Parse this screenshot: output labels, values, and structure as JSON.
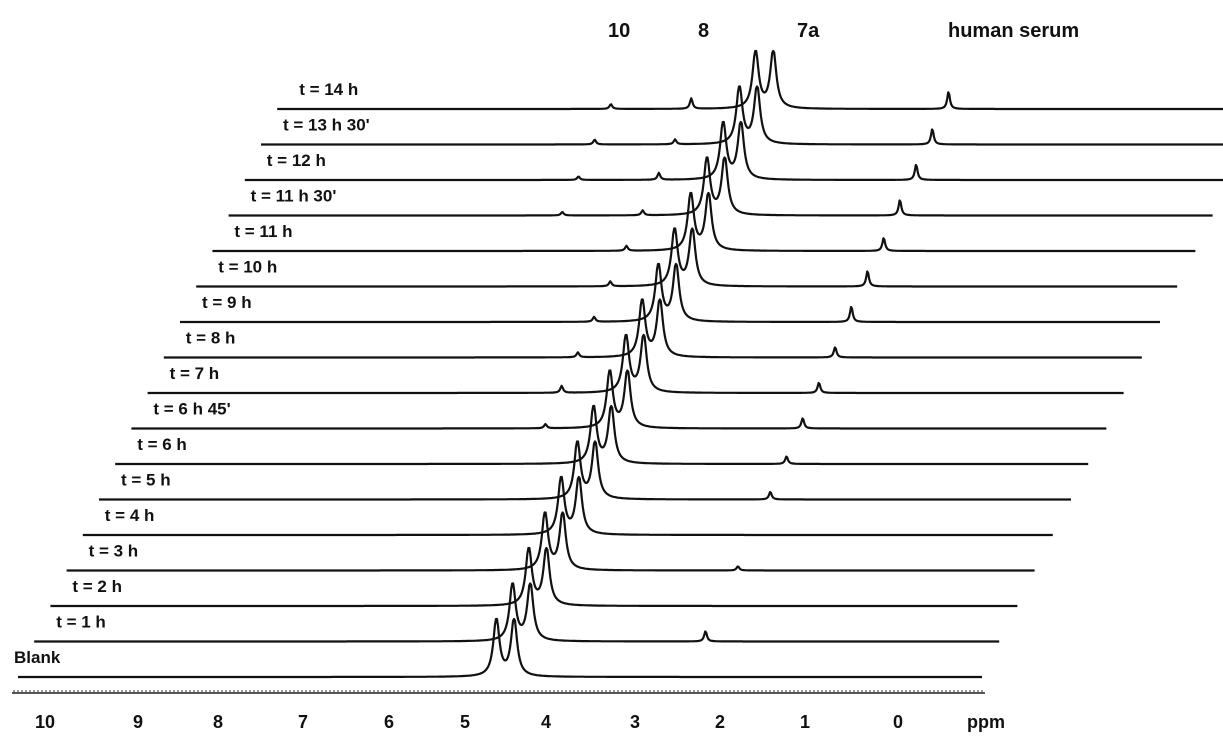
{
  "chart_data": {
    "type": "line",
    "title": "",
    "xlabel": "ppm",
    "ylabel": "",
    "x_reversed": true,
    "xlim": [
      10,
      0
    ],
    "x_ticks": [
      "10",
      "9",
      "8",
      "7",
      "6",
      "5",
      "4",
      "3",
      "2",
      "1",
      "0"
    ],
    "peak_labels": [
      "10",
      "8",
      "7a",
      "human serum"
    ],
    "series": [
      {
        "name": "Blank",
        "peaks": [
          {
            "ppm": 4.3,
            "h": 1.0
          },
          {
            "ppm": 4.08,
            "h": 1.0
          }
        ]
      },
      {
        "name": "t = 1 h",
        "peaks": [
          {
            "ppm": 4.3,
            "h": 1.0
          },
          {
            "ppm": 4.08,
            "h": 1.0
          },
          {
            "ppm": 1.9,
            "h": 0.3
          }
        ]
      },
      {
        "name": "t = 2 h",
        "peaks": [
          {
            "ppm": 4.3,
            "h": 1.0
          },
          {
            "ppm": 4.08,
            "h": 1.0
          }
        ]
      },
      {
        "name": "t = 3 h",
        "peaks": [
          {
            "ppm": 4.3,
            "h": 1.0
          },
          {
            "ppm": 4.08,
            "h": 1.0
          },
          {
            "ppm": 1.9,
            "h": 0.12
          }
        ]
      },
      {
        "name": "t = 4 h",
        "peaks": [
          {
            "ppm": 4.3,
            "h": 1.0
          },
          {
            "ppm": 4.08,
            "h": 1.0
          }
        ]
      },
      {
        "name": "t = 5 h",
        "peaks": [
          {
            "ppm": 4.3,
            "h": 1.0
          },
          {
            "ppm": 4.08,
            "h": 1.0
          },
          {
            "ppm": 1.9,
            "h": 0.22
          }
        ]
      },
      {
        "name": "t = 6 h",
        "peaks": [
          {
            "ppm": 4.3,
            "h": 1.0
          },
          {
            "ppm": 4.08,
            "h": 1.0
          },
          {
            "ppm": 1.9,
            "h": 0.22
          }
        ]
      },
      {
        "name": "t = 6 h 45'",
        "peaks": [
          {
            "ppm": 4.3,
            "h": 1.0
          },
          {
            "ppm": 4.08,
            "h": 1.0
          },
          {
            "ppm": 1.9,
            "h": 0.3
          },
          {
            "ppm": 5.1,
            "h": 0.12
          }
        ]
      },
      {
        "name": "t = 7 h",
        "peaks": [
          {
            "ppm": 4.3,
            "h": 1.0
          },
          {
            "ppm": 4.08,
            "h": 1.0
          },
          {
            "ppm": 1.9,
            "h": 0.3
          },
          {
            "ppm": 5.1,
            "h": 0.2
          }
        ]
      },
      {
        "name": "t = 8 h",
        "peaks": [
          {
            "ppm": 4.3,
            "h": 1.0
          },
          {
            "ppm": 4.08,
            "h": 1.0
          },
          {
            "ppm": 1.9,
            "h": 0.3
          },
          {
            "ppm": 5.1,
            "h": 0.14
          }
        ]
      },
      {
        "name": "t = 9 h",
        "peaks": [
          {
            "ppm": 4.3,
            "h": 1.0
          },
          {
            "ppm": 4.08,
            "h": 1.0
          },
          {
            "ppm": 1.9,
            "h": 0.45
          },
          {
            "ppm": 5.1,
            "h": 0.14
          }
        ]
      },
      {
        "name": "t = 10 h",
        "peaks": [
          {
            "ppm": 4.3,
            "h": 1.0
          },
          {
            "ppm": 4.08,
            "h": 1.0
          },
          {
            "ppm": 1.9,
            "h": 0.45
          },
          {
            "ppm": 5.1,
            "h": 0.14
          }
        ]
      },
      {
        "name": "t = 11 h",
        "peaks": [
          {
            "ppm": 4.3,
            "h": 1.0
          },
          {
            "ppm": 4.08,
            "h": 1.0
          },
          {
            "ppm": 1.9,
            "h": 0.38
          },
          {
            "ppm": 5.1,
            "h": 0.14
          }
        ]
      },
      {
        "name": "t = 11 h 30'",
        "peaks": [
          {
            "ppm": 4.3,
            "h": 1.0
          },
          {
            "ppm": 4.08,
            "h": 1.0
          },
          {
            "ppm": 1.9,
            "h": 0.45
          },
          {
            "ppm": 5.1,
            "h": 0.14
          },
          {
            "ppm": 6.1,
            "h": 0.1
          }
        ]
      },
      {
        "name": "t = 12 h",
        "peaks": [
          {
            "ppm": 4.3,
            "h": 1.0
          },
          {
            "ppm": 4.08,
            "h": 1.0
          },
          {
            "ppm": 1.9,
            "h": 0.45
          },
          {
            "ppm": 5.1,
            "h": 0.2
          },
          {
            "ppm": 6.1,
            "h": 0.1
          }
        ]
      },
      {
        "name": "t = 13 h 30'",
        "peaks": [
          {
            "ppm": 4.3,
            "h": 1.0
          },
          {
            "ppm": 4.08,
            "h": 1.0
          },
          {
            "ppm": 1.9,
            "h": 0.45
          },
          {
            "ppm": 5.1,
            "h": 0.14
          },
          {
            "ppm": 6.1,
            "h": 0.14
          }
        ]
      },
      {
        "name": "t = 14 h",
        "peaks": [
          {
            "ppm": 4.3,
            "h": 1.0
          },
          {
            "ppm": 4.08,
            "h": 1.0
          },
          {
            "ppm": 1.9,
            "h": 0.5
          },
          {
            "ppm": 5.1,
            "h": 0.3
          },
          {
            "ppm": 6.1,
            "h": 0.14
          }
        ]
      }
    ]
  }
}
